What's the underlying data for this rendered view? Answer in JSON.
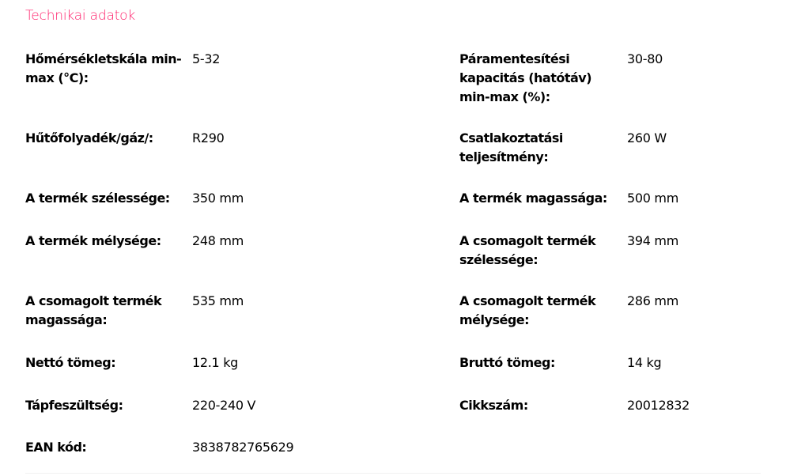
{
  "title": "Technikai adatok",
  "accent_color": "#ff1f6a",
  "rows": [
    {
      "left_label": "Hőmérsékletskála min-max (°C):",
      "left_value": "5-32",
      "right_label": "Páramentesítési kapacitás (hatótáv) min-max (%):",
      "right_value": "30-80"
    },
    {
      "left_label": "Hűtőfolyadék/gáz/:",
      "left_value": "R290",
      "right_label": "Csatlakoztatási teljesítmény:",
      "right_value": "260 W"
    },
    {
      "left_label": "A termék szélessége:",
      "left_value": "350 mm",
      "right_label": "A termék magassága:",
      "right_value": "500 mm"
    },
    {
      "left_label": "A termék mélysége:",
      "left_value": "248 mm",
      "right_label": "A csomagolt termék szélessége:",
      "right_value": "394 mm"
    },
    {
      "left_label": "A csomagolt termék magassága:",
      "left_value": "535 mm",
      "right_label": "A csomagolt termék mélysége:",
      "right_value": "286 mm"
    },
    {
      "left_label": "Nettó tömeg:",
      "left_value": "12.1 kg",
      "right_label": "Bruttó tömeg:",
      "right_value": "14 kg"
    },
    {
      "left_label": "Tápfeszültség:",
      "left_value": "220-240 V",
      "right_label": "Cikkszám:",
      "right_value": "20012832"
    },
    {
      "left_label": "EAN kód:",
      "left_value": "3838782765629"
    }
  ]
}
